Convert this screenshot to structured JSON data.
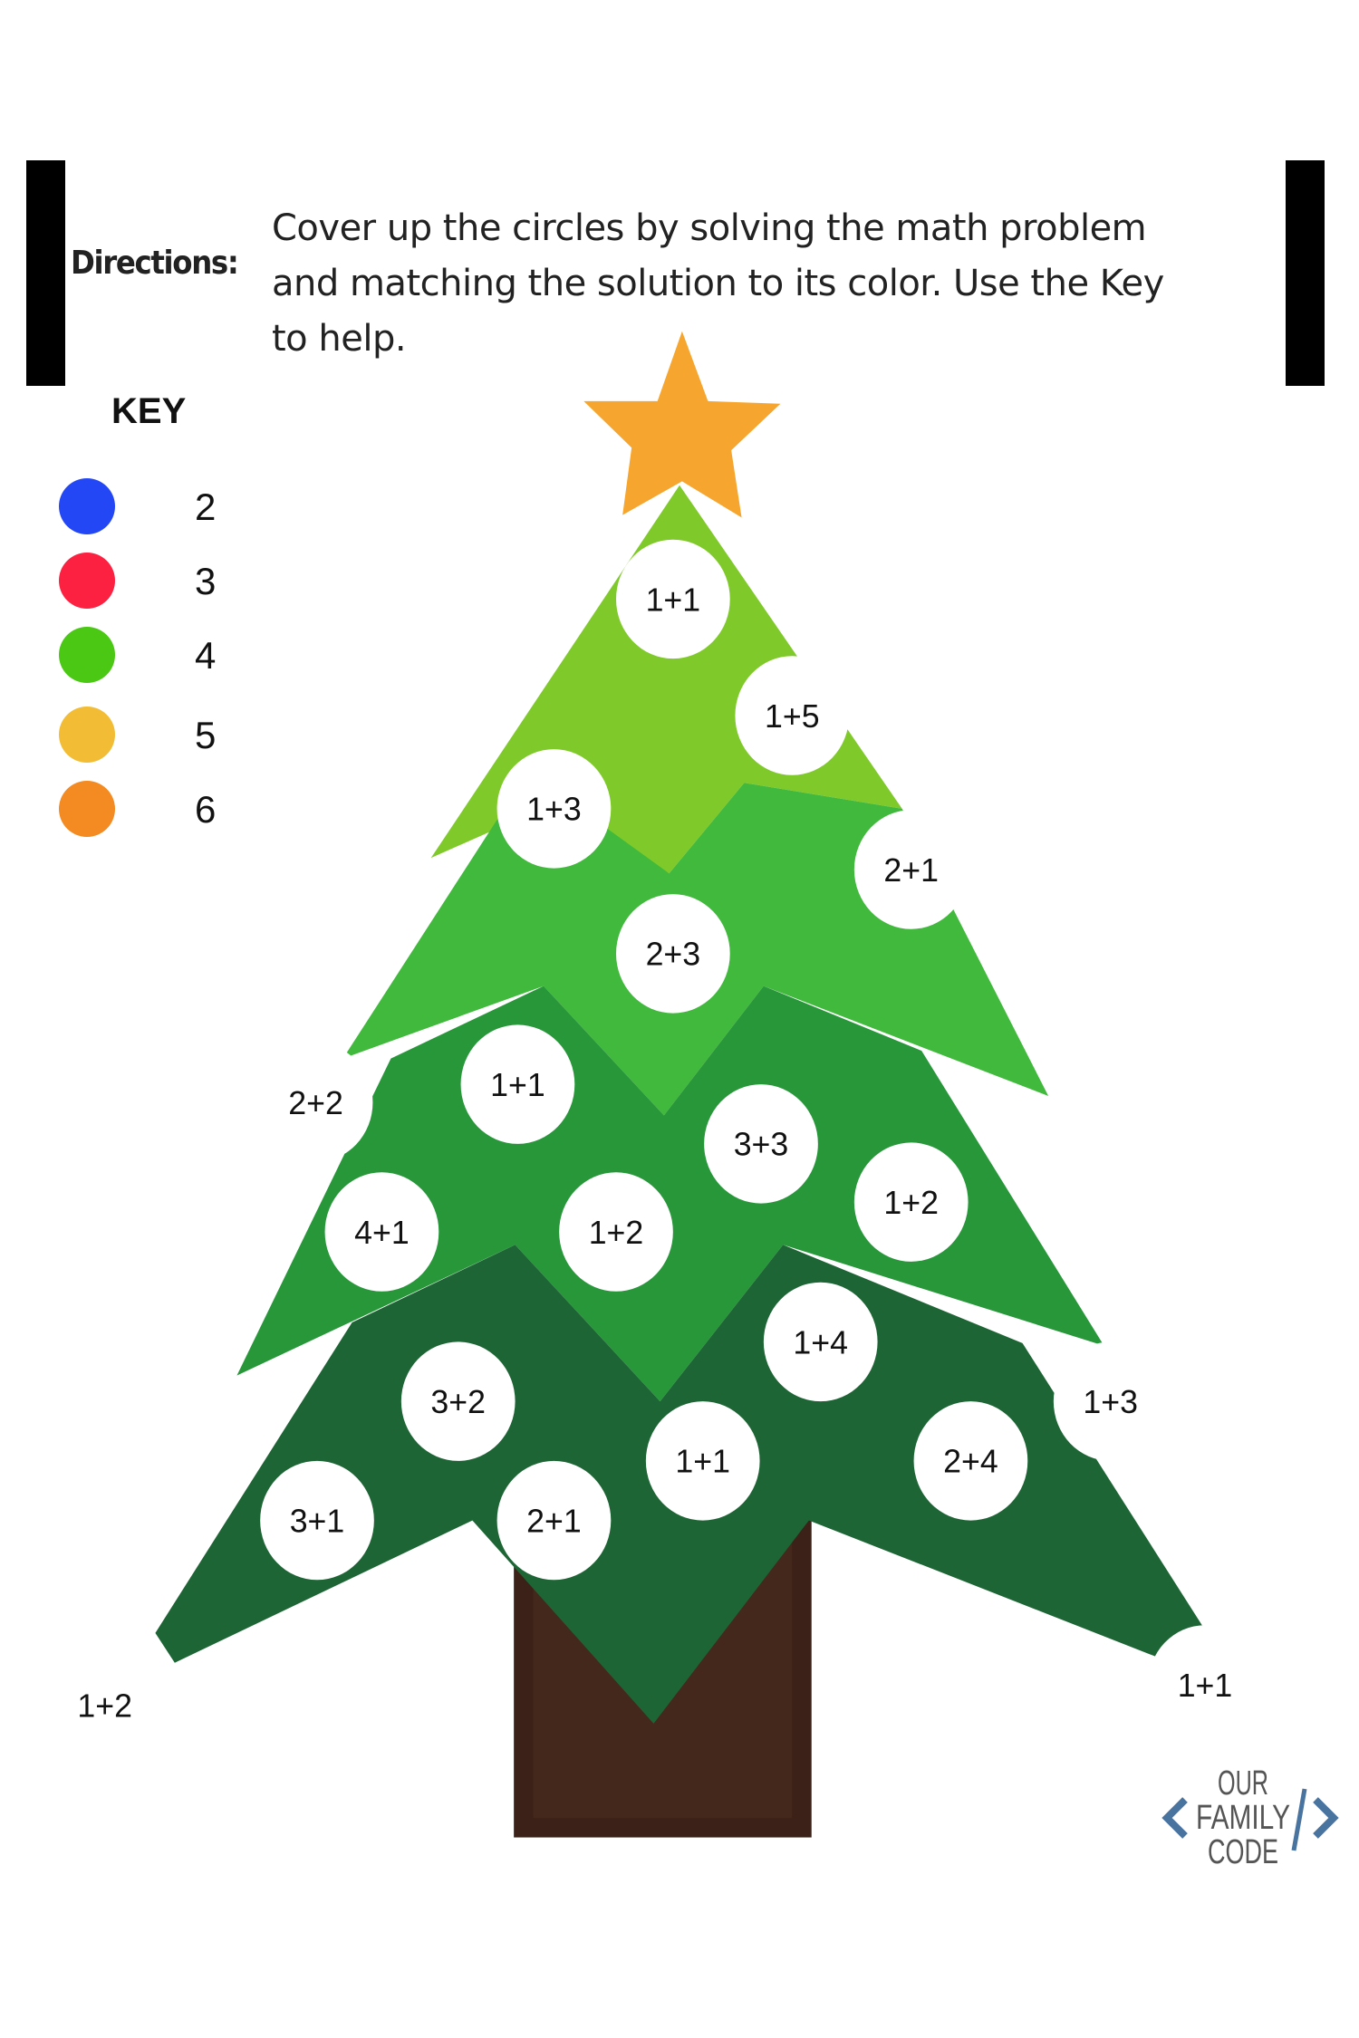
{
  "directions": {
    "label": "Directions:",
    "lines": [
      "Cover up the circles by solving the math problem",
      "and matching the solution to its color. Use the Key",
      "to help."
    ]
  },
  "key": {
    "title": "KEY",
    "items": [
      {
        "value": "2",
        "color": "#2447f5"
      },
      {
        "value": "3",
        "color": "#fc2141"
      },
      {
        "value": "4",
        "color": "#4ac814"
      },
      {
        "value": "5",
        "color": "#f2bd35"
      },
      {
        "value": "6",
        "color": "#f38a22"
      }
    ]
  },
  "tree": {
    "colors": {
      "tier1": "#7fca2a",
      "tier2": "#40b93c",
      "tier3": "#27973a",
      "tier4": "#1e6535",
      "trunk": "#3b2117",
      "trunk_inner": "#45281c",
      "star": "#f6a62e"
    },
    "problems": [
      "1+1",
      "1+5",
      "1+3",
      "2+1",
      "2+3",
      "2+2",
      "1+1",
      "3+3",
      "1+2",
      "4+1",
      "1+2",
      "1+4",
      "1+3",
      "3+2",
      "1+1",
      "2+4",
      "3+1",
      "2+1",
      "1+2",
      "1+1"
    ]
  },
  "logo": {
    "line1": "OUR",
    "line2": "FAMILY",
    "line3": "CODE",
    "color": "#4a74a0",
    "text_color": "#555"
  }
}
